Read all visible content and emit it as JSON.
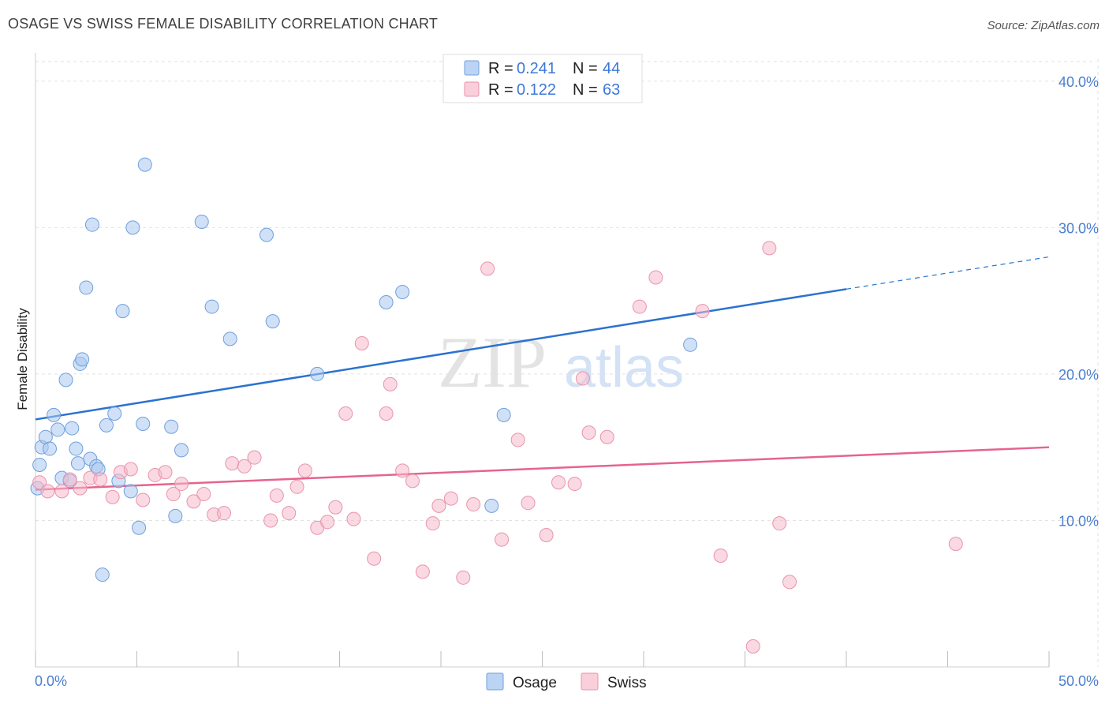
{
  "header": {
    "title": "OSAGE VS SWISS FEMALE DISABILITY CORRELATION CHART",
    "source": "Source: ZipAtlas.com"
  },
  "watermark": {
    "zip": "ZIP",
    "atlas": "atlas"
  },
  "legend": {
    "rows": [
      {
        "r_label": "R =",
        "r_value": "0.241",
        "n_label": "N =",
        "n_value": "44",
        "color": "#a9c8f0"
      },
      {
        "r_label": "R =",
        "r_value": "0.122",
        "n_label": "N =",
        "n_value": "63",
        "color": "#f5b9cb"
      }
    ]
  },
  "bottom_legend": [
    {
      "label": "Osage",
      "color": "#a9c8f0"
    },
    {
      "label": "Swiss",
      "color": "#f5b9cb"
    }
  ],
  "chart_data": {
    "type": "scatter",
    "ylabel": "Female Disability",
    "xlabel": "",
    "xlim": [
      0,
      50
    ],
    "ylim": [
      0,
      41.5
    ],
    "x_tick_labels": [
      {
        "value": 0,
        "label": "0.0%"
      },
      {
        "value": 50,
        "label": "50.0%"
      }
    ],
    "x_minor_ticks": [
      0,
      5,
      10,
      15,
      20,
      25,
      30,
      35,
      40,
      45,
      50
    ],
    "y_ticks": [
      {
        "value": 10,
        "label": "10.0%"
      },
      {
        "value": 20,
        "label": "20.0%"
      },
      {
        "value": 30,
        "label": "30.0%"
      },
      {
        "value": 40,
        "label": "40.0%"
      }
    ],
    "grid": true,
    "series": [
      {
        "name": "Osage",
        "color": "#a9c8f0",
        "stroke": "#6f9fdc",
        "line_color": "#2a72d0",
        "trend": {
          "x0": 0,
          "y0": 16.9,
          "x1": 40,
          "y1": 25.8,
          "x_end_dashed": 50,
          "y_end_dashed": 28.0
        },
        "points": [
          [
            0.1,
            12.2
          ],
          [
            0.2,
            13.8
          ],
          [
            0.3,
            15.0
          ],
          [
            0.5,
            15.7
          ],
          [
            0.7,
            14.9
          ],
          [
            0.9,
            17.2
          ],
          [
            1.1,
            16.2
          ],
          [
            1.3,
            12.9
          ],
          [
            1.5,
            19.6
          ],
          [
            1.7,
            12.7
          ],
          [
            1.8,
            16.3
          ],
          [
            2.0,
            14.9
          ],
          [
            2.1,
            13.9
          ],
          [
            2.2,
            20.7
          ],
          [
            2.3,
            21.0
          ],
          [
            2.5,
            25.9
          ],
          [
            2.7,
            14.2
          ],
          [
            2.8,
            30.2
          ],
          [
            3.0,
            13.7
          ],
          [
            3.1,
            13.5
          ],
          [
            3.3,
            6.3
          ],
          [
            3.5,
            16.5
          ],
          [
            3.9,
            17.3
          ],
          [
            4.1,
            12.7
          ],
          [
            4.3,
            24.3
          ],
          [
            4.7,
            12.0
          ],
          [
            4.8,
            30.0
          ],
          [
            5.1,
            9.5
          ],
          [
            5.3,
            16.6
          ],
          [
            5.4,
            34.3
          ],
          [
            6.7,
            16.4
          ],
          [
            6.9,
            10.3
          ],
          [
            7.2,
            14.8
          ],
          [
            8.2,
            30.4
          ],
          [
            8.7,
            24.6
          ],
          [
            9.6,
            22.4
          ],
          [
            11.4,
            29.5
          ],
          [
            11.7,
            23.6
          ],
          [
            13.9,
            20.0
          ],
          [
            17.3,
            24.9
          ],
          [
            18.1,
            25.6
          ],
          [
            22.5,
            11.0
          ],
          [
            23.1,
            17.2
          ],
          [
            32.3,
            22.0
          ]
        ]
      },
      {
        "name": "Swiss",
        "color": "#f5b9cb",
        "stroke": "#e993ae",
        "line_color": "#e5648e",
        "trend": {
          "x0": 0,
          "y0": 12.1,
          "x1": 50,
          "y1": 15.0
        },
        "points": [
          [
            0.2,
            12.6
          ],
          [
            0.6,
            12.0
          ],
          [
            1.3,
            12.0
          ],
          [
            1.7,
            12.8
          ],
          [
            2.2,
            12.2
          ],
          [
            2.7,
            12.9
          ],
          [
            3.2,
            12.8
          ],
          [
            3.8,
            11.6
          ],
          [
            4.2,
            13.3
          ],
          [
            4.7,
            13.5
          ],
          [
            5.3,
            11.4
          ],
          [
            5.9,
            13.1
          ],
          [
            6.4,
            13.3
          ],
          [
            6.8,
            11.8
          ],
          [
            7.2,
            12.5
          ],
          [
            7.8,
            11.3
          ],
          [
            8.3,
            11.8
          ],
          [
            8.8,
            10.4
          ],
          [
            9.3,
            10.5
          ],
          [
            9.7,
            13.9
          ],
          [
            10.3,
            13.7
          ],
          [
            10.8,
            14.3
          ],
          [
            11.6,
            10.0
          ],
          [
            11.9,
            11.7
          ],
          [
            12.5,
            10.5
          ],
          [
            12.9,
            12.3
          ],
          [
            13.3,
            13.4
          ],
          [
            13.9,
            9.5
          ],
          [
            14.4,
            9.9
          ],
          [
            14.8,
            10.9
          ],
          [
            15.3,
            17.3
          ],
          [
            15.7,
            10.1
          ],
          [
            16.1,
            22.1
          ],
          [
            16.7,
            7.4
          ],
          [
            17.3,
            17.3
          ],
          [
            17.5,
            19.3
          ],
          [
            18.1,
            13.4
          ],
          [
            18.6,
            12.7
          ],
          [
            19.1,
            6.5
          ],
          [
            19.6,
            9.8
          ],
          [
            19.9,
            11.0
          ],
          [
            20.5,
            11.5
          ],
          [
            21.1,
            6.1
          ],
          [
            21.6,
            11.1
          ],
          [
            22.3,
            27.2
          ],
          [
            23.0,
            8.7
          ],
          [
            23.8,
            15.5
          ],
          [
            24.3,
            11.2
          ],
          [
            25.2,
            9.0
          ],
          [
            25.8,
            12.6
          ],
          [
            26.6,
            12.5
          ],
          [
            27.0,
            19.7
          ],
          [
            27.3,
            16.0
          ],
          [
            28.2,
            15.7
          ],
          [
            29.8,
            24.6
          ],
          [
            30.6,
            26.6
          ],
          [
            32.9,
            24.3
          ],
          [
            33.8,
            7.6
          ],
          [
            35.4,
            1.4
          ],
          [
            36.2,
            28.6
          ],
          [
            36.7,
            9.8
          ],
          [
            37.2,
            5.8
          ],
          [
            45.4,
            8.4
          ]
        ]
      }
    ]
  }
}
